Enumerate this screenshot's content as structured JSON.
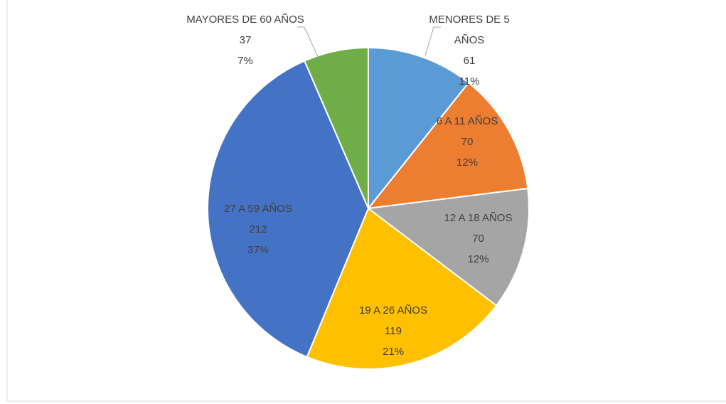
{
  "chart_data": {
    "type": "pie",
    "categories": [
      "MENORES DE 5 AÑOS",
      "6 A 11 AÑOS",
      "12 A 18 AÑOS",
      "19 A 26 AÑOS",
      "27 A 59 AÑOS",
      "MAYORES DE 60 AÑOS"
    ],
    "values": [
      61,
      70,
      70,
      119,
      212,
      37
    ],
    "percent_values": [
      11,
      12,
      12,
      21,
      37,
      7
    ],
    "percent_labels": [
      "11%",
      "12%",
      "12%",
      "21%",
      "37%",
      "7%"
    ],
    "colors": [
      "#5b9bd5",
      "#ed7d31",
      "#a5a5a5",
      "#ffc000",
      "#4472c4",
      "#70ad47"
    ]
  }
}
